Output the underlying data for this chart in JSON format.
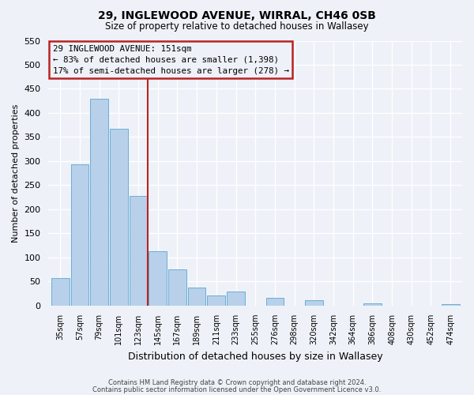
{
  "title1": "29, INGLEWOOD AVENUE, WIRRAL, CH46 0SB",
  "title2": "Size of property relative to detached houses in Wallasey",
  "xlabel": "Distribution of detached houses by size in Wallasey",
  "ylabel": "Number of detached properties",
  "bar_labels": [
    "35sqm",
    "57sqm",
    "79sqm",
    "101sqm",
    "123sqm",
    "145sqm",
    "167sqm",
    "189sqm",
    "211sqm",
    "233sqm",
    "255sqm",
    "276sqm",
    "298sqm",
    "320sqm",
    "342sqm",
    "364sqm",
    "386sqm",
    "408sqm",
    "430sqm",
    "452sqm",
    "474sqm"
  ],
  "bar_values": [
    57,
    293,
    430,
    368,
    227,
    113,
    76,
    38,
    21,
    29,
    0,
    17,
    0,
    11,
    0,
    0,
    5,
    0,
    0,
    0,
    4
  ],
  "bar_color": "#b8d0ea",
  "bar_edgecolor": "#6aaed6",
  "red_line_x": 5.0,
  "annotation_title": "29 INGLEWOOD AVENUE: 151sqm",
  "annotation_line1": "← 83% of detached houses are smaller (1,398)",
  "annotation_line2": "17% of semi-detached houses are larger (278) →",
  "annotation_box_edgecolor": "#bb2222",
  "ylim": [
    0,
    550
  ],
  "yticks": [
    0,
    50,
    100,
    150,
    200,
    250,
    300,
    350,
    400,
    450,
    500,
    550
  ],
  "footer1": "Contains HM Land Registry data © Crown copyright and database right 2024.",
  "footer2": "Contains public sector information licensed under the Open Government Licence v3.0.",
  "background_color": "#eef2f8"
}
